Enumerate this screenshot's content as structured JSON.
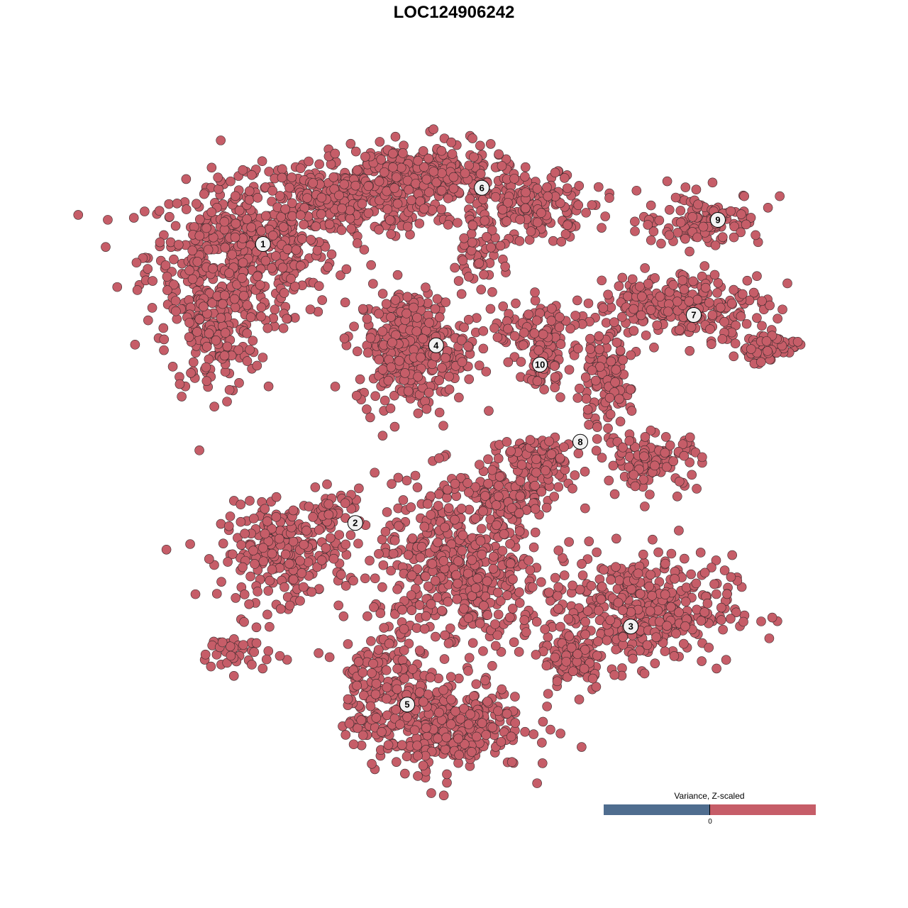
{
  "chart_data": {
    "type": "scatter",
    "title": "LOC124906242",
    "xlabel": "",
    "ylabel": "",
    "xlim": [
      -11,
      12.5
    ],
    "ylim": [
      -11.5,
      11.5
    ],
    "grid": false,
    "point_color": "#c65d68",
    "point_outline": "#3a2a2c",
    "clusters": [
      {
        "label": "1",
        "label_pos": [
          -6.73,
          7.4
        ],
        "blobs": [
          [
            -7.5,
            7.0,
            3,
            2.25,
            500
          ],
          [
            -8.5,
            4.0,
            1.5,
            1.75,
            150
          ],
          [
            -4.0,
            9.0,
            3,
            1.25,
            300
          ]
        ]
      },
      {
        "label": "2",
        "label_pos": [
          -3.48,
          -2.43
        ],
        "blobs": [
          [
            -6.0,
            -3.5,
            2.0,
            1.5,
            250
          ],
          [
            -7.75,
            -7.0,
            1.25,
            0.625,
            40
          ],
          [
            -4.25,
            -2.0,
            1.0,
            0.625,
            50
          ]
        ]
      },
      {
        "label": "3",
        "label_pos": [
          6.23,
          -6.08
        ],
        "blobs": [
          [
            6.5,
            -5.5,
            3.0,
            1.75,
            400
          ],
          [
            4.25,
            -7.25,
            1.0,
            1.0,
            80
          ]
        ]
      },
      {
        "label": "4",
        "label_pos": [
          -0.63,
          3.83
        ],
        "blobs": [
          [
            -1.5,
            3.75,
            1.75,
            1.875,
            350
          ]
        ]
      },
      {
        "label": "5",
        "label_pos": [
          -1.65,
          -8.83
        ],
        "blobs": [
          [
            -0.5,
            -9.5,
            2.75,
            1.5,
            400
          ],
          [
            -2.75,
            -7.75,
            1.25,
            1.5,
            100
          ],
          [
            0.25,
            -4.0,
            2.75,
            2.75,
            500
          ],
          [
            2.0,
            -1.5,
            1.75,
            1.0,
            120
          ]
        ]
      },
      {
        "label": "6",
        "label_pos": [
          0.98,
          9.38
        ],
        "blobs": [
          [
            -1.0,
            9.75,
            2.75,
            1.125,
            300
          ],
          [
            3.0,
            8.75,
            1.75,
            1.0,
            150
          ],
          [
            1.0,
            7.25,
            1.0,
            1.25,
            60
          ]
        ]
      },
      {
        "label": "7",
        "label_pos": [
          8.45,
          4.9
        ],
        "blobs": [
          [
            8.0,
            5.25,
            2.75,
            1.0,
            250
          ],
          [
            11.0,
            3.75,
            1.0,
            0.5,
            60
          ]
        ]
      },
      {
        "label": "8",
        "label_pos": [
          4.45,
          0.43
        ],
        "blobs": [
          [
            5.25,
            2.5,
            0.875,
            1.5,
            120
          ],
          [
            7.0,
            -0.25,
            1.5,
            0.875,
            120
          ],
          [
            3.0,
            0,
            1.5,
            0.625,
            80
          ]
        ]
      },
      {
        "label": "9",
        "label_pos": [
          9.3,
          8.25
        ],
        "blobs": [
          [
            8.75,
            8.25,
            2.0,
            0.875,
            120
          ]
        ]
      },
      {
        "label": "10",
        "label_pos": [
          3.03,
          3.15
        ],
        "blobs": [
          [
            3.0,
            4.25,
            1.5,
            1.0,
            100
          ],
          [
            3.125,
            3.0,
            0.625,
            0.75,
            40
          ]
        ]
      }
    ],
    "legend": {
      "title": "Variance, Z-scaled",
      "tick": "0",
      "low_color": "#4f6d8f",
      "high_color": "#c65d68",
      "placement": "bottom-right"
    }
  }
}
